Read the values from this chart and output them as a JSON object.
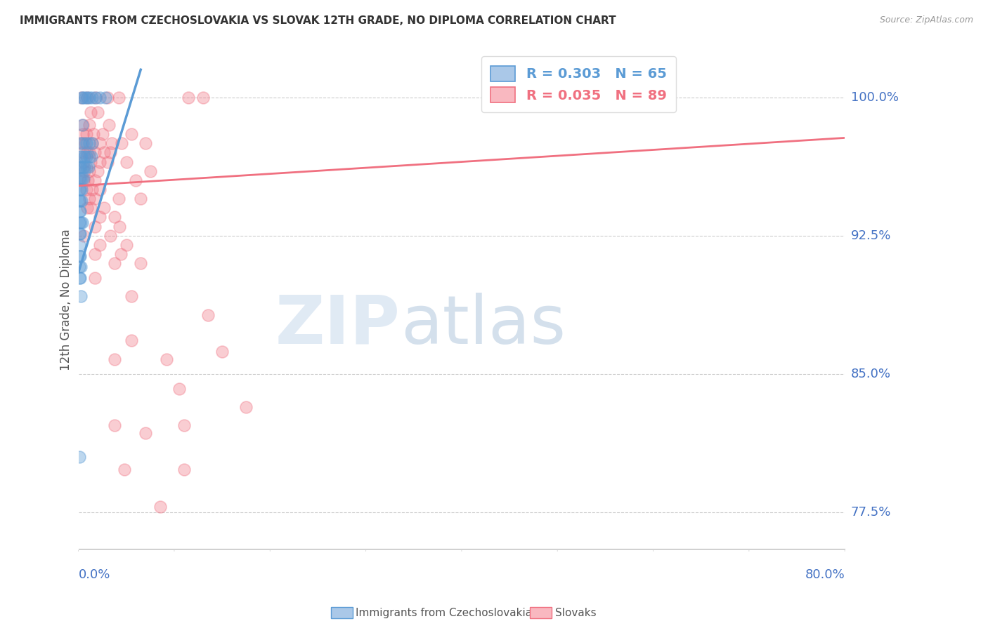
{
  "title": "IMMIGRANTS FROM CZECHOSLOVAKIA VS SLOVAK 12TH GRADE, NO DIPLOMA CORRELATION CHART",
  "source": "Source: ZipAtlas.com",
  "ylabel": "12th Grade, No Diploma",
  "yticks": [
    100.0,
    92.5,
    85.0,
    77.5
  ],
  "ytick_labels": [
    "100.0%",
    "92.5%",
    "85.0%",
    "77.5%"
  ],
  "xlim": [
    0.0,
    80.0
  ],
  "ylim": [
    75.5,
    102.5
  ],
  "blue_color": "#5b9bd5",
  "pink_color": "#f07080",
  "blue_scatter": [
    [
      0.3,
      100.0
    ],
    [
      0.5,
      100.0
    ],
    [
      0.7,
      100.0
    ],
    [
      0.9,
      100.0
    ],
    [
      1.1,
      100.0
    ],
    [
      1.4,
      100.0
    ],
    [
      1.8,
      100.0
    ],
    [
      2.2,
      100.0
    ],
    [
      2.8,
      100.0
    ],
    [
      0.4,
      98.5
    ],
    [
      0.2,
      97.5
    ],
    [
      0.5,
      97.5
    ],
    [
      0.8,
      97.5
    ],
    [
      1.1,
      97.5
    ],
    [
      1.4,
      97.5
    ],
    [
      0.15,
      96.8
    ],
    [
      0.35,
      96.8
    ],
    [
      0.6,
      96.8
    ],
    [
      0.85,
      96.8
    ],
    [
      1.1,
      96.8
    ],
    [
      1.35,
      96.8
    ],
    [
      0.1,
      96.2
    ],
    [
      0.25,
      96.2
    ],
    [
      0.45,
      96.2
    ],
    [
      0.65,
      96.2
    ],
    [
      0.85,
      96.2
    ],
    [
      1.05,
      96.2
    ],
    [
      0.1,
      95.6
    ],
    [
      0.22,
      95.6
    ],
    [
      0.38,
      95.6
    ],
    [
      0.55,
      95.6
    ],
    [
      0.1,
      95.0
    ],
    [
      0.2,
      95.0
    ],
    [
      0.32,
      95.0
    ],
    [
      0.1,
      94.4
    ],
    [
      0.2,
      94.4
    ],
    [
      0.35,
      94.4
    ],
    [
      0.1,
      93.8
    ],
    [
      0.2,
      93.8
    ],
    [
      0.1,
      93.2
    ],
    [
      0.22,
      93.2
    ],
    [
      0.38,
      93.2
    ],
    [
      0.1,
      92.6
    ],
    [
      0.2,
      92.6
    ],
    [
      0.12,
      92.0
    ],
    [
      0.1,
      91.4
    ],
    [
      0.2,
      91.4
    ],
    [
      0.12,
      90.8
    ],
    [
      0.22,
      90.8
    ],
    [
      0.1,
      90.2
    ],
    [
      0.2,
      90.2
    ],
    [
      0.28,
      89.2
    ],
    [
      0.12,
      80.5
    ]
  ],
  "pink_scatter": [
    [
      0.35,
      100.0
    ],
    [
      0.9,
      100.0
    ],
    [
      1.8,
      100.0
    ],
    [
      3.0,
      100.0
    ],
    [
      4.2,
      100.0
    ],
    [
      11.5,
      100.0
    ],
    [
      13.0,
      100.0
    ],
    [
      1.3,
      99.2
    ],
    [
      2.0,
      99.2
    ],
    [
      0.5,
      98.5
    ],
    [
      1.1,
      98.5
    ],
    [
      3.2,
      98.5
    ],
    [
      0.45,
      98.0
    ],
    [
      0.8,
      98.0
    ],
    [
      1.6,
      98.0
    ],
    [
      2.5,
      98.0
    ],
    [
      5.5,
      98.0
    ],
    [
      0.35,
      97.5
    ],
    [
      0.7,
      97.5
    ],
    [
      1.4,
      97.5
    ],
    [
      2.2,
      97.5
    ],
    [
      3.5,
      97.5
    ],
    [
      4.5,
      97.5
    ],
    [
      7.0,
      97.5
    ],
    [
      0.45,
      97.0
    ],
    [
      0.9,
      97.0
    ],
    [
      1.1,
      97.0
    ],
    [
      1.7,
      97.0
    ],
    [
      2.7,
      97.0
    ],
    [
      3.3,
      97.0
    ],
    [
      0.55,
      96.5
    ],
    [
      1.3,
      96.5
    ],
    [
      2.2,
      96.5
    ],
    [
      3.0,
      96.5
    ],
    [
      5.0,
      96.5
    ],
    [
      0.65,
      96.0
    ],
    [
      1.1,
      96.0
    ],
    [
      2.0,
      96.0
    ],
    [
      7.5,
      96.0
    ],
    [
      0.55,
      95.5
    ],
    [
      1.0,
      95.5
    ],
    [
      1.7,
      95.5
    ],
    [
      6.0,
      95.5
    ],
    [
      0.8,
      95.0
    ],
    [
      1.4,
      95.0
    ],
    [
      2.2,
      95.0
    ],
    [
      1.1,
      94.5
    ],
    [
      1.7,
      94.5
    ],
    [
      4.2,
      94.5
    ],
    [
      6.5,
      94.5
    ],
    [
      0.9,
      94.0
    ],
    [
      1.3,
      94.0
    ],
    [
      2.7,
      94.0
    ],
    [
      2.2,
      93.5
    ],
    [
      3.8,
      93.5
    ],
    [
      1.7,
      93.0
    ],
    [
      4.3,
      93.0
    ],
    [
      0.55,
      92.5
    ],
    [
      3.3,
      92.5
    ],
    [
      2.2,
      92.0
    ],
    [
      5.0,
      92.0
    ],
    [
      1.7,
      91.5
    ],
    [
      4.4,
      91.5
    ],
    [
      3.8,
      91.0
    ],
    [
      6.5,
      91.0
    ],
    [
      1.7,
      90.2
    ],
    [
      5.5,
      89.2
    ],
    [
      13.5,
      88.2
    ],
    [
      5.5,
      86.8
    ],
    [
      15.0,
      86.2
    ],
    [
      3.8,
      85.8
    ],
    [
      9.2,
      85.8
    ],
    [
      10.5,
      84.2
    ],
    [
      17.5,
      83.2
    ],
    [
      3.8,
      82.2
    ],
    [
      11.0,
      82.2
    ],
    [
      7.0,
      81.8
    ],
    [
      4.8,
      79.8
    ],
    [
      11.0,
      79.8
    ],
    [
      8.5,
      77.8
    ]
  ],
  "blue_line": [
    [
      0.0,
      90.5
    ],
    [
      6.5,
      101.5
    ]
  ],
  "pink_line": [
    [
      0.0,
      95.2
    ],
    [
      80.0,
      97.8
    ]
  ],
  "legend1_r": "R = 0.303",
  "legend1_n": "N = 65",
  "legend2_r": "R = 0.035",
  "legend2_n": "N = 89",
  "bottom_label1": "Immigrants from Czechoslovakia",
  "bottom_label2": "Slovaks"
}
